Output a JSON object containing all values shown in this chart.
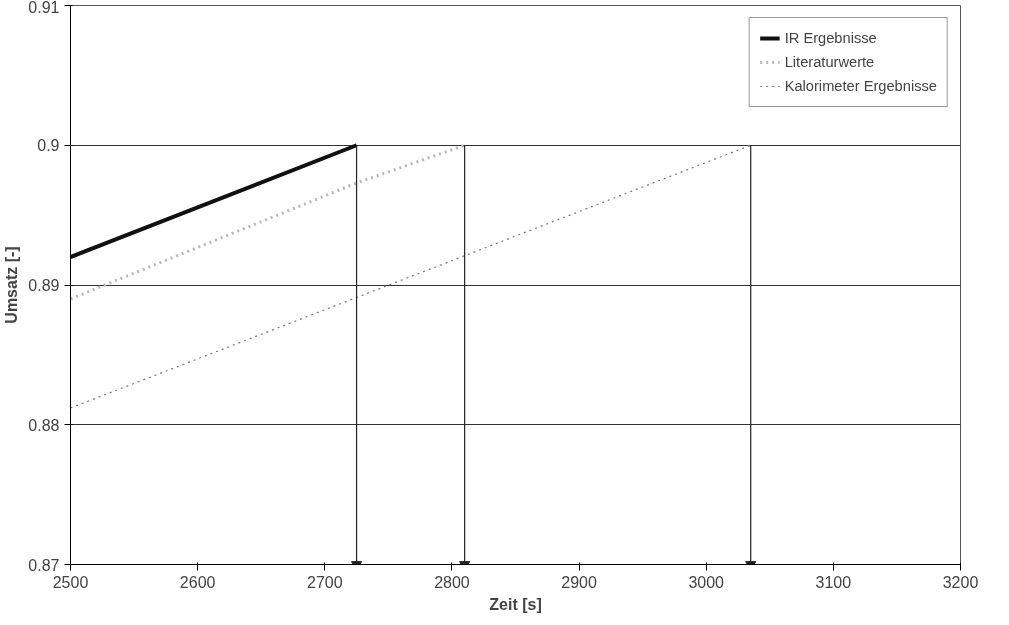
{
  "chart_data": {
    "type": "line",
    "xlabel": "Zeit [s]",
    "ylabel": "Umsatz [-]",
    "xlim": [
      2500,
      3200
    ],
    "xticks": [
      2500,
      2600,
      2700,
      2800,
      2900,
      3000,
      3100,
      3200
    ],
    "ylim": [
      0.87,
      0.91
    ],
    "yticks": [
      0.87,
      0.88,
      0.89,
      0.9,
      0.91
    ],
    "grid": "y",
    "legend": "top right",
    "series": [
      {
        "name": "IR Ergebnisse",
        "color": "#111111",
        "x": [
          2500,
          2725
        ],
        "values": [
          0.892,
          0.9
        ],
        "line_style": "solid"
      },
      {
        "name": "Literaturwerte",
        "color": "#b8b8b8",
        "x": [
          2500,
          2725,
          2810
        ],
        "values": [
          0.889,
          0.8973,
          0.9
        ],
        "line_style": "dotted"
      },
      {
        "name": "Kalorimeter Ergebnisse",
        "color": "#777777",
        "x": [
          2500,
          3035
        ],
        "values": [
          0.8812,
          0.9
        ],
        "line_style": "dotted"
      },
      {
        "color": "#222222",
        "x": [
          2725,
          2725
        ],
        "values": [
          0.9,
          0.87
        ],
        "line_style": "solid",
        "marker": "triangle"
      },
      {
        "color": "#222222",
        "x": [
          2810,
          2810
        ],
        "values": [
          0.9,
          0.87
        ],
        "line_style": "solid",
        "marker": "triangle"
      },
      {
        "color": "#222222",
        "x": [
          3035,
          3035
        ],
        "values": [
          0.9,
          0.87
        ],
        "line_style": "solid",
        "marker": "triangle"
      }
    ]
  }
}
